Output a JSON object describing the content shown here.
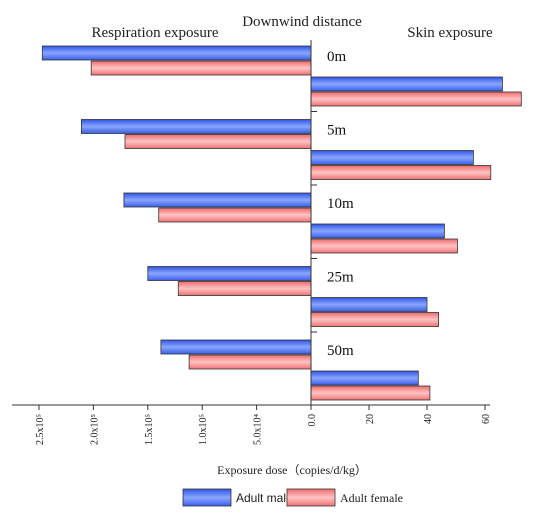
{
  "chart_data": {
    "type": "bar",
    "orientation": "horizontal-diverging",
    "title": "Downwind distance",
    "left_panel_title": "Respiration exposure",
    "right_panel_title": "Skin exposure",
    "xlabel": "Exposure dose（copies/d/kg）",
    "categories": [
      "0m",
      "5m",
      "10m",
      "25m",
      "50m"
    ],
    "respiration_axis": {
      "lim": [
        0,
        250000
      ],
      "ticks": [
        {
          "value": 0,
          "label": "0.0"
        },
        {
          "value": 50000,
          "label": "5.0x10⁴"
        },
        {
          "value": 100000,
          "label": "1.0x10⁵"
        },
        {
          "value": 150000,
          "label": "1.5x10⁵"
        },
        {
          "value": 200000,
          "label": "2.0x10⁵"
        },
        {
          "value": 250000,
          "label": "2.5x10⁵"
        }
      ]
    },
    "skin_axis": {
      "lim": [
        0,
        75
      ],
      "ticks": [
        {
          "value": 20,
          "label": "20"
        },
        {
          "value": 40,
          "label": "40"
        },
        {
          "value": 60,
          "label": "60"
        }
      ]
    },
    "series": [
      {
        "name": "Adult male",
        "color": "#4f72f0",
        "respiration": [
          247000,
          211000,
          172000,
          150000,
          138000
        ],
        "skin": [
          66,
          56,
          46,
          40,
          37
        ]
      },
      {
        "name": "Adult female",
        "color": "#f0787a",
        "respiration": [
          202000,
          171000,
          140000,
          122000,
          112000
        ],
        "skin": [
          72.5,
          62,
          50.5,
          44,
          41
        ]
      }
    ],
    "legend_position": "bottom",
    "grid": false
  }
}
